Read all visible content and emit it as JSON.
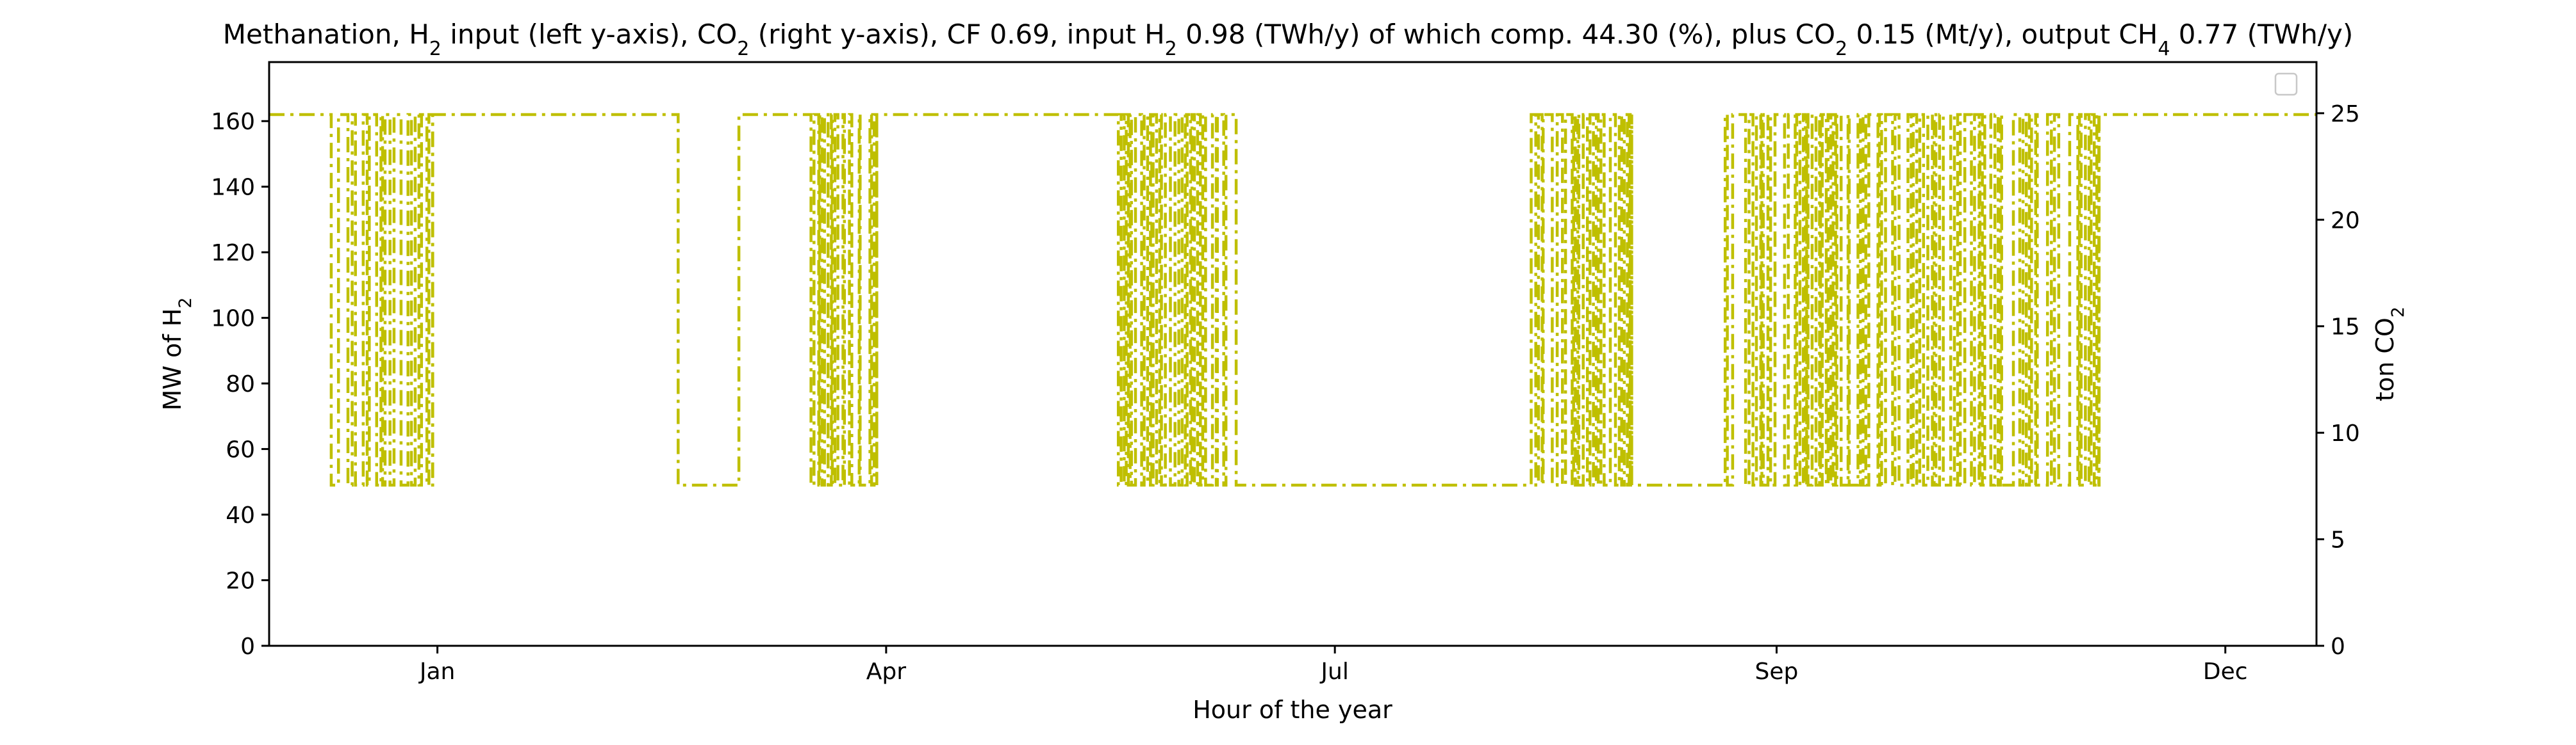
{
  "chart_data": {
    "type": "line",
    "title": {
      "parts": [
        {
          "text": "Methanation, H"
        },
        {
          "text": "2",
          "sub": true
        },
        {
          "text": " input (left y-axis), CO"
        },
        {
          "text": "2",
          "sub": true
        },
        {
          "text": " (right y-axis), CF 0.69, input H"
        },
        {
          "text": "2",
          "sub": true
        },
        {
          "text": " 0.98 (TWh/y) of which comp. 44.30 (%), plus CO"
        },
        {
          "text": "2",
          "sub": true
        },
        {
          "text": " 0.15 (Mt/y), output CH"
        },
        {
          "text": "4",
          "sub": true
        },
        {
          "text": " 0.77 (TWh/y)"
        }
      ]
    },
    "xlabel": "Hour of the year",
    "ylabel_left": {
      "parts": [
        {
          "text": "MW of H"
        },
        {
          "text": "2",
          "sub": true
        }
      ]
    },
    "ylabel_right": {
      "parts": [
        {
          "text": "ton CO"
        },
        {
          "text": "2",
          "sub": true
        }
      ]
    },
    "xlim": [
      0,
      8760
    ],
    "ylim_left": [
      0,
      178
    ],
    "ylim_right": [
      0,
      27.4
    ],
    "x_ticks": [
      {
        "label": "Jan",
        "value": 720
      },
      {
        "label": "Apr",
        "value": 2640
      },
      {
        "label": "Jul",
        "value": 4560
      },
      {
        "label": "Sep",
        "value": 6450
      },
      {
        "label": "Dec",
        "value": 8370
      }
    ],
    "y_ticks_left": [
      0,
      20,
      40,
      60,
      80,
      100,
      120,
      140,
      160
    ],
    "y_ticks_right": [
      0,
      5,
      10,
      15,
      20,
      25
    ],
    "line_color": "#bfbf00",
    "line_style": "dash-dot",
    "legend": {
      "placement": "top-right",
      "entries": []
    },
    "series": [
      {
        "axis": "left",
        "max_value": 162,
        "min_value": 49,
        "segments": [
          {
            "x0": 0,
            "x1": 250,
            "mode": "high"
          },
          {
            "x0": 250,
            "x1": 700,
            "mode": "oscillate",
            "density": 0.55
          },
          {
            "x0": 700,
            "x1": 1750,
            "mode": "high"
          },
          {
            "x0": 1750,
            "x1": 2010,
            "mode": "low"
          },
          {
            "x0": 2010,
            "x1": 2310,
            "mode": "high"
          },
          {
            "x0": 2310,
            "x1": 2600,
            "mode": "oscillate",
            "density": 0.9
          },
          {
            "x0": 2600,
            "x1": 3620,
            "mode": "high"
          },
          {
            "x0": 3620,
            "x1": 4150,
            "mode": "oscillate",
            "density": 0.7
          },
          {
            "x0": 4150,
            "x1": 5400,
            "mode": "low"
          },
          {
            "x0": 5400,
            "x1": 5830,
            "mode": "oscillate",
            "density": 0.75
          },
          {
            "x0": 5830,
            "x1": 6230,
            "mode": "low"
          },
          {
            "x0": 6230,
            "x1": 7830,
            "mode": "oscillate",
            "density": 0.6
          },
          {
            "x0": 7830,
            "x1": 8760,
            "mode": "high"
          }
        ]
      }
    ]
  }
}
